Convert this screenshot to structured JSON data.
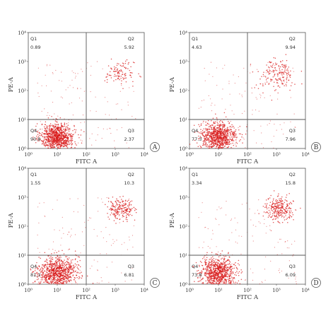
{
  "figure": {
    "background": "#ffffff",
    "dot_color": "#d81a1a",
    "line_color": "#555555"
  },
  "chart_data": [
    {
      "type": "scatter",
      "panel": "A",
      "xlabel": "FITC A",
      "ylabel": "PE-A",
      "x_scale": "log",
      "y_scale": "log",
      "xlim": [
        1,
        10000
      ],
      "ylim": [
        1,
        10000
      ],
      "x_ticks": [
        "10⁰",
        "10¹",
        "10²",
        "10³",
        "10⁴"
      ],
      "y_ticks": [
        "10⁰",
        "10¹",
        "10²",
        "10³",
        "10⁴"
      ],
      "gate": {
        "x": 100,
        "y": 10
      },
      "quadrants": [
        {
          "name": "Q1",
          "value": "0.89"
        },
        {
          "name": "Q2",
          "value": "5.92"
        },
        {
          "name": "Q3",
          "value": "2.37"
        },
        {
          "name": "Q4",
          "value": "90.8"
        }
      ],
      "clusters": [
        {
          "x": 10,
          "y": 2.5,
          "spread": 0.26,
          "n": 900
        },
        {
          "x": 1500,
          "y": 400,
          "spread": 0.22,
          "n": 110
        }
      ]
    },
    {
      "type": "scatter",
      "panel": "B",
      "xlabel": "FITC A",
      "ylabel": "PE-A",
      "x_scale": "log",
      "y_scale": "log",
      "xlim": [
        1,
        10000
      ],
      "ylim": [
        1,
        10000
      ],
      "x_ticks": [
        "10⁰",
        "10¹",
        "10²",
        "10³",
        "10⁴"
      ],
      "y_ticks": [
        "10⁰",
        "10¹",
        "10²",
        "10³",
        "10⁴"
      ],
      "gate": {
        "x": 100,
        "y": 10
      },
      "quadrants": [
        {
          "name": "Q1",
          "value": "4.63"
        },
        {
          "name": "Q2",
          "value": "9.94"
        },
        {
          "name": "Q3",
          "value": "7.96"
        },
        {
          "name": "Q4",
          "value": "77.3"
        }
      ],
      "clusters": [
        {
          "x": 10,
          "y": 2.5,
          "spread": 0.28,
          "n": 850
        },
        {
          "x": 1000,
          "y": 350,
          "spread": 0.3,
          "n": 170
        }
      ]
    },
    {
      "type": "scatter",
      "panel": "C",
      "xlabel": "FITC A",
      "ylabel": "PE-A",
      "x_scale": "log",
      "y_scale": "log",
      "xlim": [
        1,
        10000
      ],
      "ylim": [
        1,
        10000
      ],
      "x_ticks": [
        "10⁰",
        "10¹",
        "10²",
        "10³",
        "10⁴"
      ],
      "y_ticks": [
        "10⁰",
        "10¹",
        "10²",
        "10³",
        "10⁴"
      ],
      "gate": {
        "x": 100,
        "y": 10
      },
      "quadrants": [
        {
          "name": "Q1",
          "value": "1.55"
        },
        {
          "name": "Q2",
          "value": "10.3"
        },
        {
          "name": "Q3",
          "value": "6.81"
        },
        {
          "name": "Q4",
          "value": "81.3"
        }
      ],
      "clusters": [
        {
          "x": 10,
          "y": 2.5,
          "spread": 0.3,
          "n": 900
        },
        {
          "x": 1600,
          "y": 400,
          "spread": 0.2,
          "n": 200
        }
      ]
    },
    {
      "type": "scatter",
      "panel": "D",
      "xlabel": "FITC A",
      "ylabel": "PE-A",
      "x_scale": "log",
      "y_scale": "log",
      "xlim": [
        1,
        10000
      ],
      "ylim": [
        1,
        10000
      ],
      "x_ticks": [
        "10⁰",
        "10¹",
        "10²",
        "10³",
        "10⁴"
      ],
      "y_ticks": [
        "10⁰",
        "10¹",
        "10²",
        "10³",
        "10⁴"
      ],
      "gate": {
        "x": 100,
        "y": 10
      },
      "quadrants": [
        {
          "name": "Q1",
          "value": "3.34"
        },
        {
          "name": "Q2",
          "value": "15.8"
        },
        {
          "name": "Q3",
          "value": "6.09"
        },
        {
          "name": "Q4",
          "value": "73.8"
        }
      ],
      "clusters": [
        {
          "x": 10,
          "y": 2.5,
          "spread": 0.28,
          "n": 850
        },
        {
          "x": 1200,
          "y": 400,
          "spread": 0.22,
          "n": 260
        }
      ]
    }
  ]
}
